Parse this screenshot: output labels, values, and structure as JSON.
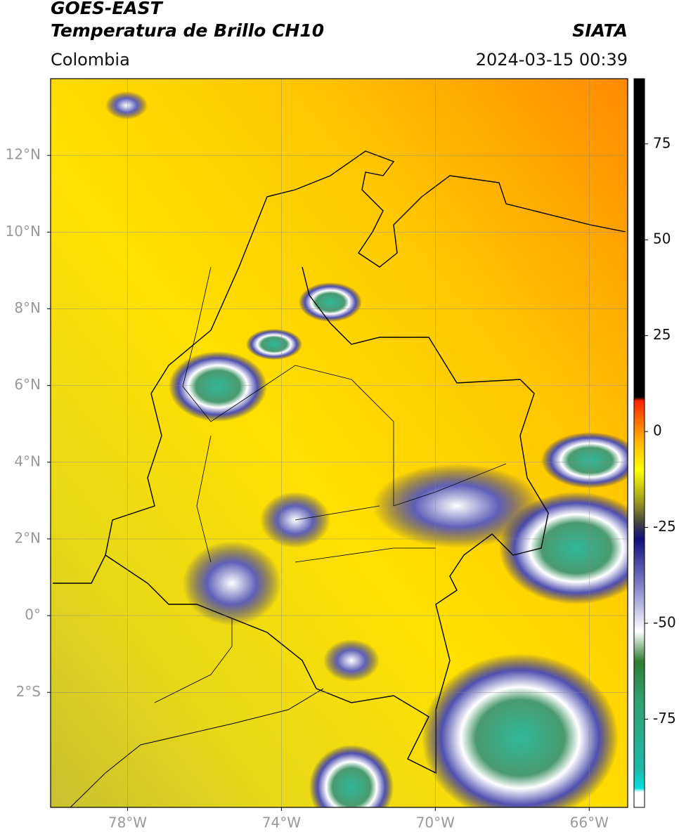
{
  "header": {
    "satellite": "GOES-EAST",
    "product": "Temperatura de Brillo CH10",
    "source": "SIATA",
    "region": "Colombia",
    "datetime": "2024-03-15 00:39"
  },
  "map": {
    "xlim": [
      -80,
      -65
    ],
    "ylim": [
      -5,
      14
    ],
    "xticks": [
      {
        "value": -78,
        "label": "78°W"
      },
      {
        "value": -74,
        "label": "74°W"
      },
      {
        "value": -70,
        "label": "70°W"
      },
      {
        "value": -66,
        "label": "66°W"
      }
    ],
    "yticks": [
      {
        "value": 12,
        "label": "12°N"
      },
      {
        "value": 10,
        "label": "10°N"
      },
      {
        "value": 8,
        "label": "8°N"
      },
      {
        "value": 6,
        "label": "6°N"
      },
      {
        "value": 4,
        "label": "4°N"
      },
      {
        "value": 2,
        "label": "2°N"
      },
      {
        "value": 0,
        "label": "0°"
      },
      {
        "value": -2,
        "label": "2°S"
      }
    ],
    "grid": true
  },
  "colorbar": {
    "lim": [
      -98,
      92
    ],
    "ticks": [
      75,
      50,
      25,
      0,
      -25,
      -50,
      -75
    ],
    "stops": [
      {
        "value": -98,
        "color": "#ffffff"
      },
      {
        "value": -94,
        "color": "#ffffff"
      },
      {
        "value": -93,
        "color": "#00e0e0"
      },
      {
        "value": -88,
        "color": "#20b8a8"
      },
      {
        "value": -70,
        "color": "#30a070"
      },
      {
        "value": -60,
        "color": "#2e7d32"
      },
      {
        "value": -52,
        "color": "#ffffff"
      },
      {
        "value": -40,
        "color": "#8080c8"
      },
      {
        "value": -28,
        "color": "#10107a"
      },
      {
        "value": -24,
        "color": "#404040"
      },
      {
        "value": -18,
        "color": "#a0a020"
      },
      {
        "value": -10,
        "color": "#ffff00"
      },
      {
        "value": -2,
        "color": "#ffb000"
      },
      {
        "value": 8,
        "color": "#ff2000"
      },
      {
        "value": 9,
        "color": "#000000"
      },
      {
        "value": 92,
        "color": "#000000"
      }
    ]
  }
}
